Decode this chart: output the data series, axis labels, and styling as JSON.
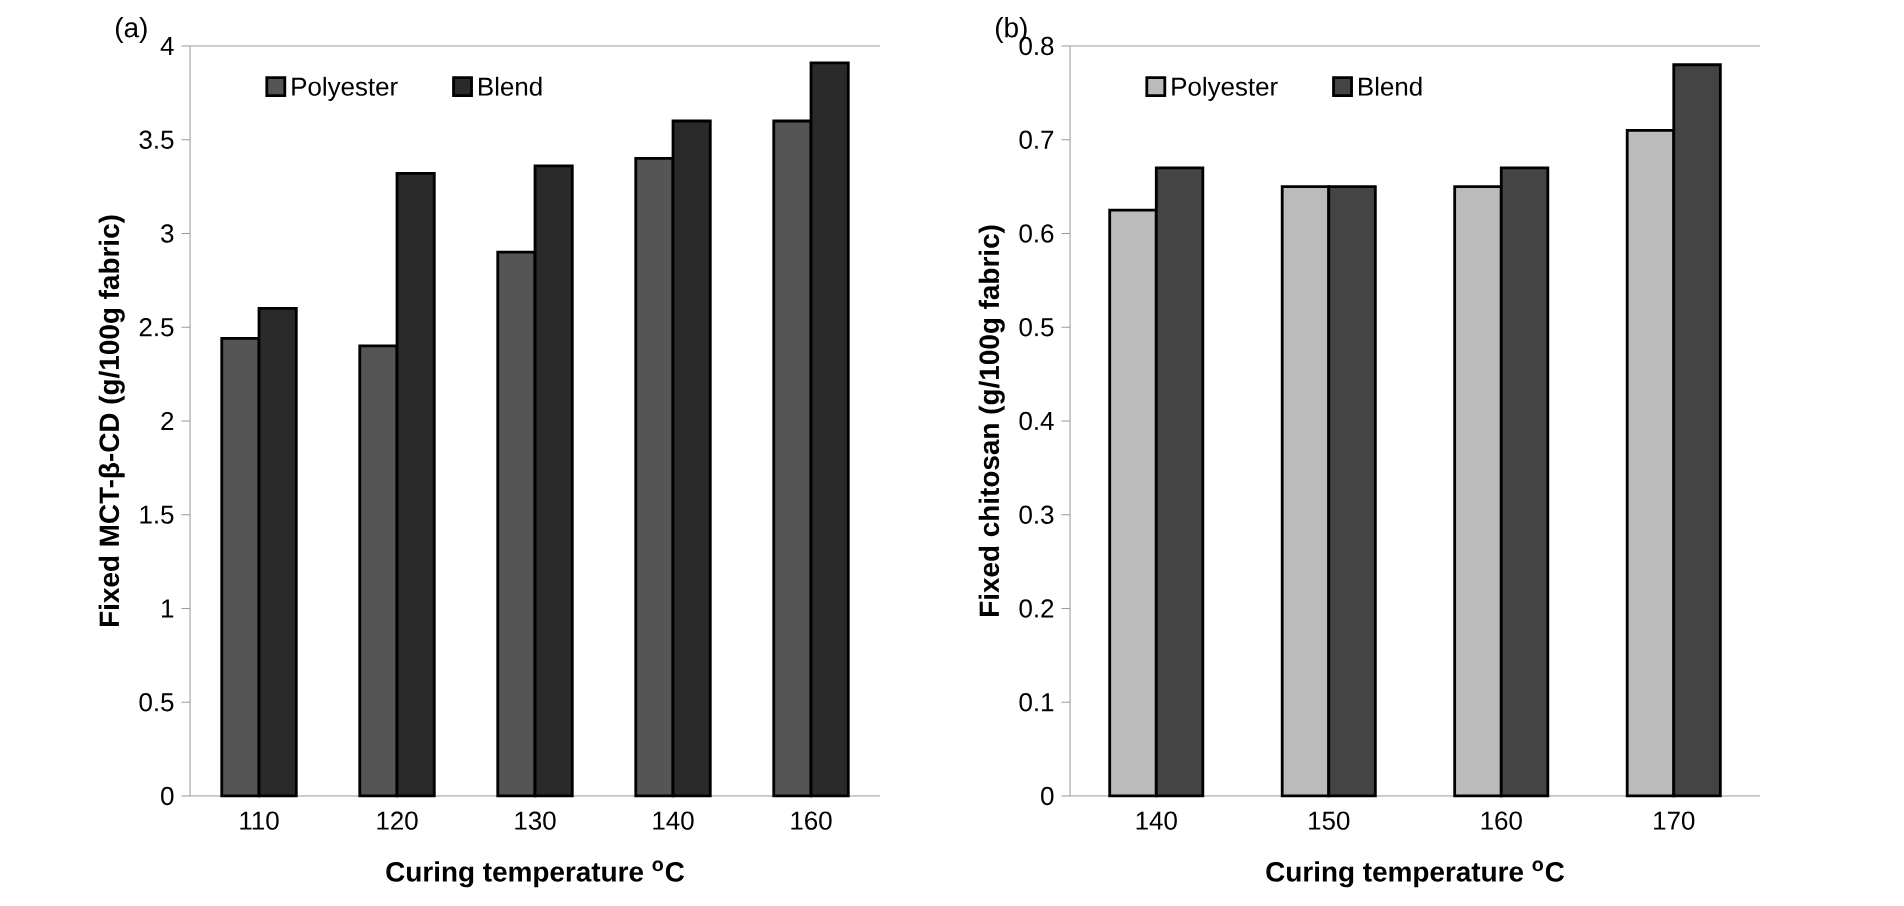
{
  "chart_data": [
    {
      "type": "bar",
      "title": "(a)",
      "xlabel": "Curing temperature $^{o}$C",
      "ylabel": "Fixed MCT-β-CD (g/100g fabric)",
      "categories": [
        "110",
        "120",
        "130",
        "140",
        "160"
      ],
      "series": [
        {
          "name": "Polyester",
          "color": "#555555",
          "values": [
            2.44,
            2.4,
            2.9,
            3.4,
            3.6
          ]
        },
        {
          "name": "Blend",
          "color": "#2a2a2a",
          "values": [
            2.6,
            3.32,
            3.36,
            3.6,
            3.91
          ]
        }
      ],
      "ylim": [
        0,
        4
      ],
      "yticks": [
        0,
        0.5,
        1,
        1.5,
        2,
        2.5,
        3,
        3.5,
        4
      ],
      "legend": "top left"
    },
    {
      "type": "bar",
      "title": "(b)",
      "xlabel": "Curing temperature $^{o}$C",
      "ylabel": "Fixed chitosan (g/100g fabric)",
      "categories": [
        "140",
        "150",
        "160",
        "170"
      ],
      "series": [
        {
          "name": "Polyester",
          "color": "#bbbbbb",
          "values": [
            0.625,
            0.65,
            0.65,
            0.71
          ]
        },
        {
          "name": "Blend",
          "color": "#444444",
          "values": [
            0.67,
            0.65,
            0.67,
            0.78
          ]
        }
      ],
      "ylim": [
        0,
        0.8
      ],
      "yticks": [
        0,
        0.1,
        0.2,
        0.3,
        0.4,
        0.5,
        0.6,
        0.7,
        0.8
      ],
      "legend": "top left"
    }
  ]
}
